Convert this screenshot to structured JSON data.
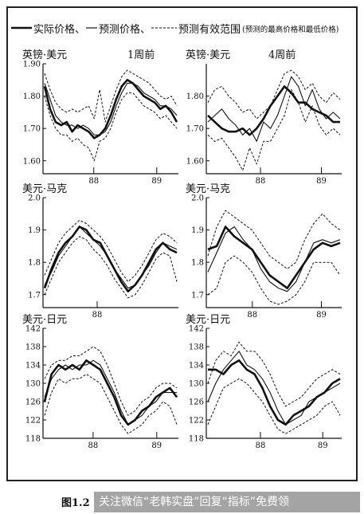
{
  "legend": {
    "actual": "实际价格、",
    "forecast": "预测价格、",
    "band": "预测有效范围",
    "band_note": "(预测的最高价格和最低价格)"
  },
  "caption": "图1.2",
  "watermark": "关注微信“老韩实盘”回复“指标”免费领",
  "chart_data": [
    {
      "type": "line",
      "title": "英镑·美元",
      "horizon": "1周前",
      "ylim": [
        1.56,
        1.9
      ],
      "yticks": [
        "1.90",
        "1.80",
        "1.70",
        "1.60"
      ],
      "ytick_values": [
        1.9,
        1.8,
        1.7,
        1.6
      ],
      "xticks": [
        "88",
        "89"
      ],
      "xtick_positions": [
        0.375,
        0.84
      ],
      "series": [
        {
          "role": "actual",
          "values": [
            1.83,
            1.76,
            1.72,
            1.71,
            1.72,
            1.69,
            1.71,
            1.7,
            1.69,
            1.67,
            1.68,
            1.7,
            1.74,
            1.79,
            1.83,
            1.85,
            1.84,
            1.82,
            1.8,
            1.79,
            1.78,
            1.76,
            1.77,
            1.75,
            1.72
          ]
        },
        {
          "role": "forecast",
          "values": [
            1.84,
            1.79,
            1.74,
            1.72,
            1.71,
            1.71,
            1.7,
            1.71,
            1.7,
            1.68,
            1.68,
            1.69,
            1.72,
            1.77,
            1.81,
            1.84,
            1.84,
            1.83,
            1.81,
            1.8,
            1.79,
            1.77,
            1.77,
            1.76,
            1.74
          ]
        },
        {
          "role": "band_high",
          "values": [
            1.87,
            1.82,
            1.78,
            1.76,
            1.75,
            1.76,
            1.75,
            1.76,
            1.77,
            1.73,
            1.82,
            1.72,
            1.77,
            1.82,
            1.86,
            1.88,
            1.87,
            1.86,
            1.85,
            1.84,
            1.82,
            1.8,
            1.79,
            1.8,
            1.77
          ]
        },
        {
          "role": "band_low",
          "values": [
            1.8,
            1.74,
            1.7,
            1.68,
            1.68,
            1.66,
            1.67,
            1.65,
            1.64,
            1.6,
            1.66,
            1.67,
            1.7,
            1.75,
            1.79,
            1.81,
            1.81,
            1.79,
            1.77,
            1.76,
            1.75,
            1.73,
            1.74,
            1.72,
            1.7
          ]
        }
      ]
    },
    {
      "type": "line",
      "title": "英镑·美元",
      "horizon": "4周前",
      "ylim": [
        1.56,
        1.9
      ],
      "yticks": [
        "1.80",
        "1.70",
        "1.60"
      ],
      "ytick_values": [
        1.8,
        1.7,
        1.6
      ],
      "xticks": [
        "88",
        "89"
      ],
      "xtick_positions": [
        0.4,
        0.85
      ],
      "series": [
        {
          "role": "actual",
          "values": [
            1.74,
            1.72,
            1.7,
            1.69,
            1.69,
            1.7,
            1.68,
            1.7,
            1.73,
            1.77,
            1.8,
            1.83,
            1.81,
            1.78,
            1.78,
            1.76,
            1.75,
            1.74,
            1.72,
            1.72
          ]
        },
        {
          "role": "forecast",
          "values": [
            1.72,
            1.74,
            1.76,
            1.73,
            1.71,
            1.68,
            1.7,
            1.66,
            1.72,
            1.7,
            1.74,
            1.8,
            1.86,
            1.83,
            1.77,
            1.82,
            1.76,
            1.73,
            1.75,
            1.73
          ]
        },
        {
          "role": "band_high",
          "values": [
            1.78,
            1.82,
            1.83,
            1.8,
            1.78,
            1.75,
            1.76,
            1.73,
            1.75,
            1.77,
            1.82,
            1.87,
            1.88,
            1.86,
            1.82,
            1.84,
            1.8,
            1.78,
            1.81,
            1.79
          ]
        },
        {
          "role": "band_low",
          "values": [
            1.68,
            1.66,
            1.67,
            1.64,
            1.61,
            1.57,
            1.64,
            1.59,
            1.66,
            1.66,
            1.7,
            1.74,
            1.82,
            1.78,
            1.72,
            1.77,
            1.71,
            1.68,
            1.7,
            1.68
          ]
        }
      ]
    },
    {
      "type": "line",
      "title": "美元·马克",
      "horizon": "",
      "ylim": [
        1.66,
        2.0
      ],
      "yticks": [
        "2.0",
        "1.9",
        "1.8",
        "1.7"
      ],
      "ytick_values": [
        2.0,
        1.9,
        1.8,
        1.7
      ],
      "xticks": [
        "88"
      ],
      "xtick_positions": [
        0.4
      ],
      "series": [
        {
          "role": "actual",
          "values": [
            1.72,
            1.78,
            1.83,
            1.86,
            1.88,
            1.91,
            1.9,
            1.87,
            1.86,
            1.82,
            1.78,
            1.74,
            1.71,
            1.73,
            1.76,
            1.8,
            1.84,
            1.86,
            1.84,
            1.83
          ]
        },
        {
          "role": "forecast",
          "values": [
            1.73,
            1.77,
            1.82,
            1.85,
            1.88,
            1.91,
            1.89,
            1.87,
            1.85,
            1.82,
            1.78,
            1.75,
            1.72,
            1.73,
            1.76,
            1.79,
            1.83,
            1.86,
            1.85,
            1.84
          ]
        },
        {
          "role": "band_high",
          "values": [
            1.76,
            1.81,
            1.86,
            1.89,
            1.91,
            1.93,
            1.92,
            1.9,
            1.88,
            1.85,
            1.81,
            1.77,
            1.74,
            1.76,
            1.79,
            1.83,
            1.87,
            1.89,
            1.88,
            1.86
          ]
        },
        {
          "role": "band_low",
          "values": [
            1.7,
            1.75,
            1.8,
            1.83,
            1.86,
            1.88,
            1.87,
            1.84,
            1.82,
            1.79,
            1.75,
            1.72,
            1.69,
            1.7,
            1.73,
            1.77,
            1.81,
            1.83,
            1.82,
            1.74
          ]
        }
      ]
    },
    {
      "type": "line",
      "title": "美元·马克",
      "horizon": "",
      "ylim": [
        1.66,
        2.0
      ],
      "yticks": [
        "2.0",
        "1.9",
        "1.8",
        "1.7"
      ],
      "ytick_values": [
        2.0,
        1.9,
        1.8,
        1.7
      ],
      "xticks": [
        "88",
        "89"
      ],
      "xtick_positions": [
        0.34,
        0.85
      ],
      "series": [
        {
          "role": "actual",
          "values": [
            1.84,
            1.85,
            1.91,
            1.88,
            1.86,
            1.84,
            1.8,
            1.76,
            1.74,
            1.72,
            1.76,
            1.8,
            1.84,
            1.86,
            1.85,
            1.86
          ]
        },
        {
          "role": "forecast",
          "values": [
            1.77,
            1.83,
            1.89,
            1.91,
            1.87,
            1.84,
            1.78,
            1.74,
            1.72,
            1.71,
            1.74,
            1.8,
            1.86,
            1.87,
            1.86,
            1.87
          ]
        },
        {
          "role": "band_high",
          "values": [
            1.82,
            1.91,
            1.96,
            1.94,
            1.92,
            1.9,
            1.86,
            1.82,
            1.8,
            1.78,
            1.8,
            1.87,
            1.92,
            1.95,
            1.92,
            1.9
          ]
        },
        {
          "role": "band_low",
          "values": [
            1.7,
            1.72,
            1.8,
            1.82,
            1.8,
            1.77,
            1.72,
            1.68,
            1.67,
            1.68,
            1.7,
            1.74,
            1.8,
            1.8,
            1.8,
            1.76
          ]
        }
      ]
    },
    {
      "type": "line",
      "title": "美元·日元",
      "horizon": "",
      "ylim": [
        118,
        142
      ],
      "yticks": [
        "142",
        "138",
        "134",
        "130",
        "126",
        "122",
        "118"
      ],
      "ytick_values": [
        142,
        138,
        134,
        130,
        126,
        122,
        118
      ],
      "xticks": [
        "88",
        "89"
      ],
      "xtick_positions": [
        0.37,
        0.84
      ],
      "series": [
        {
          "role": "actual",
          "values": [
            126,
            132,
            134,
            133,
            134,
            133,
            135,
            134,
            133,
            130,
            127,
            123,
            121,
            122,
            124,
            125,
            127,
            128,
            129,
            127
          ]
        },
        {
          "role": "forecast",
          "values": [
            127,
            131,
            133,
            134,
            133,
            134,
            134,
            135,
            134,
            131,
            128,
            124,
            121,
            122,
            123,
            125,
            126,
            128,
            128,
            128
          ]
        },
        {
          "role": "band_high",
          "values": [
            131,
            134,
            135,
            135,
            136,
            136,
            137,
            138,
            137,
            134,
            130,
            126,
            123,
            124,
            126,
            127,
            129,
            130,
            130,
            129
          ]
        },
        {
          "role": "band_low",
          "values": [
            123,
            128,
            131,
            130,
            131,
            131,
            132,
            131,
            130,
            127,
            124,
            121,
            119,
            120,
            121,
            123,
            124,
            126,
            125,
            121
          ]
        }
      ]
    },
    {
      "type": "line",
      "title": "美元·日元",
      "horizon": "",
      "ylim": [
        118,
        142
      ],
      "yticks": [
        "142",
        "138",
        "134",
        "130",
        "126",
        "122",
        "118"
      ],
      "ytick_values": [
        142,
        138,
        134,
        130,
        126,
        122,
        118
      ],
      "xticks": [
        "88",
        "89"
      ],
      "xtick_positions": [
        0.4,
        0.86
      ],
      "series": [
        {
          "role": "actual",
          "values": [
            133,
            133,
            132,
            134,
            135,
            133,
            132,
            129,
            125,
            122,
            121,
            123,
            124,
            125,
            127,
            128,
            130,
            131
          ]
        },
        {
          "role": "forecast",
          "values": [
            126,
            130,
            133,
            135,
            137,
            134,
            133,
            131,
            128,
            124,
            121,
            122,
            123,
            126,
            127,
            128,
            129,
            130
          ]
        },
        {
          "role": "band_high",
          "values": [
            130,
            135,
            137,
            136,
            139,
            137,
            137,
            135,
            132,
            128,
            125,
            126,
            127,
            129,
            131,
            132,
            133,
            132
          ]
        },
        {
          "role": "band_low",
          "values": [
            121,
            125,
            129,
            130,
            131,
            130,
            128,
            126,
            123,
            120,
            119,
            120,
            121,
            122,
            123,
            125,
            126,
            123
          ]
        }
      ]
    }
  ]
}
